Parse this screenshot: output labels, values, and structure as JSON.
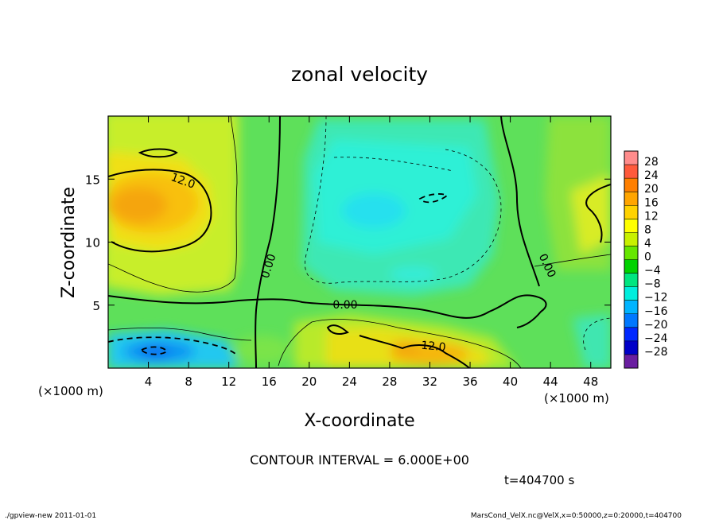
{
  "chart_data": {
    "type": "heatmap",
    "title": "zonal velocity",
    "xlabel": "X-coordinate",
    "ylabel": "Z-coordinate",
    "x_unit": "(×1000 m)",
    "y_unit": "(×1000 m)",
    "xlim": [
      0,
      50
    ],
    "ylim": [
      0,
      20
    ],
    "x_ticks": [
      4,
      8,
      12,
      16,
      20,
      24,
      28,
      32,
      36,
      40,
      44,
      48
    ],
    "y_ticks": [
      5,
      10,
      15
    ],
    "colorbar_levels": [
      28,
      24,
      20,
      16,
      12,
      8,
      4,
      0,
      -4,
      -8,
      -12,
      -16,
      -20,
      -24,
      -28
    ],
    "colorbar_colors": [
      "#ff8c8c",
      "#ff5a3c",
      "#ff7f00",
      "#ffa500",
      "#ffd200",
      "#ffff00",
      "#c8f000",
      "#66e600",
      "#00d200",
      "#00e680",
      "#00eedd",
      "#00b4ff",
      "#0078ff",
      "#0028ff",
      "#0000c8",
      "#6a1ea0"
    ],
    "contour_interval": "CONTOUR INTERVAL = 6.000E+00",
    "contour_labels": [
      "12.0",
      "0.00",
      "0.00",
      "0.00",
      "12.0"
    ],
    "time": "t=404700 s"
  },
  "footer": {
    "left": "./gpview-new   2011-01-01",
    "right": "MarsCond_VelX.nc@VelX,x=0:50000,z=0:20000,t=404700"
  }
}
